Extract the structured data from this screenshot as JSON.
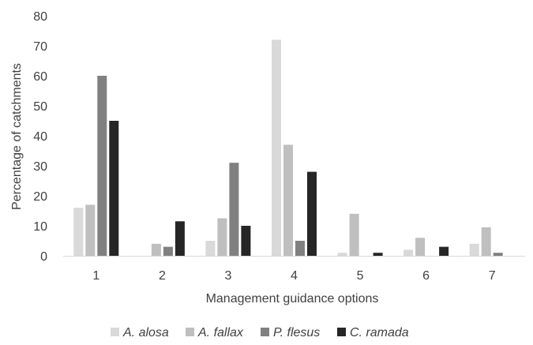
{
  "chart_data": {
    "type": "bar",
    "xlabel": "Management guidance options",
    "ylabel": "Percentage of catchments",
    "ylim": [
      0,
      80
    ],
    "yticks": [
      0,
      10,
      20,
      30,
      40,
      50,
      60,
      70,
      80
    ],
    "grid": false,
    "legend_position": "bottom",
    "categories": [
      "1",
      "2",
      "3",
      "4",
      "5",
      "6",
      "7"
    ],
    "series": [
      {
        "name": "A. alosa",
        "color": "#d9d9d9",
        "values": [
          16,
          0,
          5,
          72,
          1,
          2,
          4
        ]
      },
      {
        "name": "A. fallax",
        "color": "#bfbfbf",
        "values": [
          17,
          4,
          12.5,
          37,
          14,
          6,
          9.5
        ]
      },
      {
        "name": "P. flesus",
        "color": "#808080",
        "values": [
          60,
          3,
          31,
          5,
          0,
          0,
          1
        ]
      },
      {
        "name": "C. ramada",
        "color": "#262626",
        "values": [
          45,
          11.5,
          10,
          28,
          1,
          3,
          0
        ]
      }
    ]
  }
}
